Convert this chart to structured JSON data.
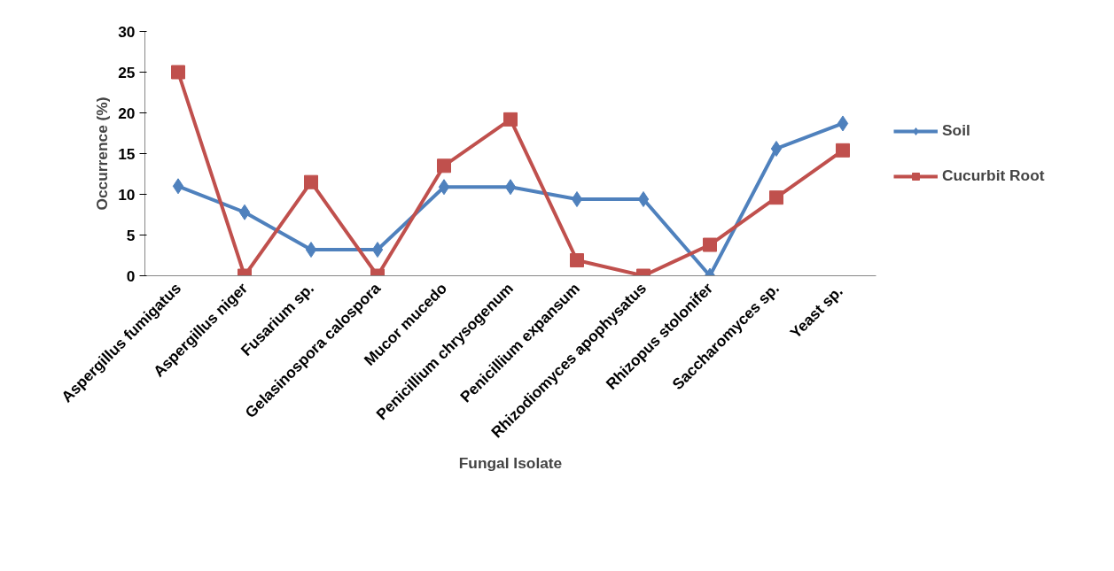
{
  "chart_data": {
    "type": "line",
    "xlabel": "Fungal Isolate",
    "ylabel": "Occurrence (%)",
    "categories": [
      "Aspergillus fumigatus",
      "Aspergillus niger",
      "Fusarium sp.",
      "Gelasinospora calospora",
      "Mucor mucedo",
      "Penicillium chrysogenum",
      "Penicillium expansum",
      "Rhizodiomyces apophysatus",
      "Rhizopus stolonifer",
      "Saccharomyces sp.",
      "Yeast  sp."
    ],
    "series": [
      {
        "name": "Soil",
        "color": "#4f81bd",
        "marker": "diamond",
        "values": [
          11.0,
          7.8,
          3.2,
          3.2,
          10.9,
          10.9,
          9.4,
          9.4,
          0,
          15.6,
          18.7
        ]
      },
      {
        "name": "Cucurbit Root",
        "color": "#c0504d",
        "marker": "square",
        "values": [
          25,
          0,
          11.5,
          0,
          13.5,
          19.2,
          1.9,
          0,
          3.8,
          9.6,
          15.4
        ]
      }
    ],
    "ylim": [
      0,
      30
    ],
    "yticks": [
      0,
      5,
      10,
      15,
      20,
      25,
      30
    ],
    "grid": false,
    "legend": "right",
    "line_style": "solid"
  }
}
